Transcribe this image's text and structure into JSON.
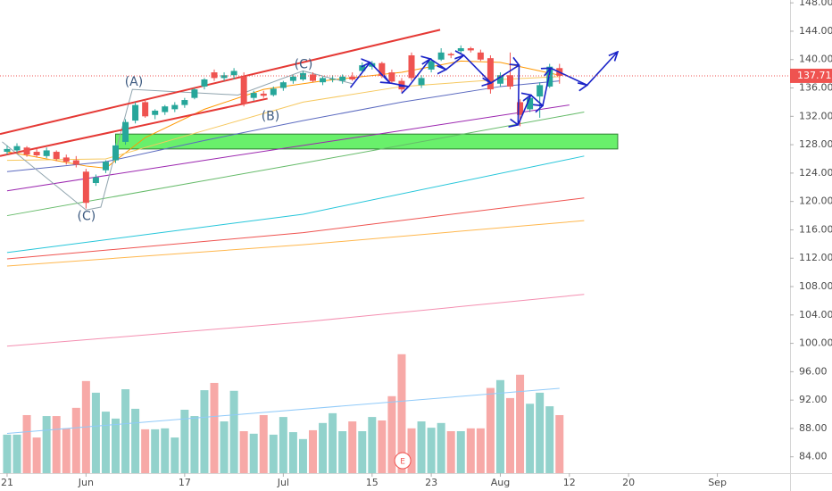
{
  "chart_data": {
    "type": "candlestick",
    "x": [
      0,
      1,
      2,
      3,
      4,
      5,
      6,
      7,
      8,
      9,
      10,
      11,
      12,
      13,
      14,
      15,
      16,
      17,
      18,
      19,
      20,
      21,
      22,
      23,
      24,
      25,
      26,
      27,
      28,
      29,
      30,
      31,
      32,
      33,
      34,
      35,
      36,
      37,
      38,
      39,
      40,
      41,
      42,
      43,
      44,
      45,
      46,
      47,
      48,
      49,
      50,
      51,
      52,
      53,
      54,
      55,
      56
    ],
    "open": [
      127.0,
      127.2,
      127.6,
      127.0,
      126.4,
      127.0,
      126.2,
      125.8,
      124.2,
      122.6,
      124.4,
      125.8,
      128.4,
      131.4,
      134.0,
      132.2,
      132.6,
      133.0,
      133.6,
      134.6,
      136.2,
      138.2,
      137.4,
      137.8,
      137.6,
      134.6,
      135.2,
      135.0,
      136.0,
      137.0,
      137.2,
      137.9,
      136.8,
      137.2,
      137.0,
      137.6,
      138.4,
      139.0,
      139.5,
      138.2,
      137.0,
      140.6,
      136.4,
      138.6,
      140.0,
      140.8,
      141.2,
      141.6,
      141.0,
      140.2,
      136.6,
      137.8,
      134.0,
      133.0,
      134.8,
      136.2,
      138.8
    ],
    "high": [
      127.9,
      128.2,
      127.8,
      127.4,
      127.6,
      127.2,
      126.6,
      126.4,
      124.6,
      123.8,
      125.8,
      128.2,
      131.6,
      134.0,
      134.4,
      133.0,
      133.6,
      134.0,
      134.6,
      136.0,
      137.4,
      138.6,
      138.2,
      138.8,
      138.2,
      135.6,
      135.6,
      136.2,
      137.0,
      137.8,
      138.4,
      138.2,
      137.6,
      137.8,
      137.9,
      138.2,
      139.6,
      139.8,
      139.7,
      138.6,
      137.4,
      141.0,
      137.8,
      140.2,
      141.6,
      141.0,
      142.0,
      141.8,
      141.4,
      140.6,
      138.2,
      141.0,
      134.4,
      135.0,
      136.8,
      139.4,
      139.4
    ],
    "low": [
      126.6,
      126.9,
      126.3,
      126.2,
      126.1,
      125.7,
      125.2,
      124.8,
      119.0,
      122.2,
      124.0,
      125.4,
      128.0,
      131.0,
      131.8,
      131.6,
      132.2,
      132.6,
      133.2,
      134.4,
      135.8,
      137.0,
      137.0,
      137.2,
      133.4,
      134.2,
      134.6,
      134.8,
      135.6,
      136.6,
      137.0,
      136.8,
      136.4,
      136.8,
      136.6,
      137.0,
      138.2,
      138.6,
      137.4,
      136.6,
      135.4,
      137.0,
      136.0,
      138.2,
      139.8,
      140.2,
      140.8,
      141.0,
      139.8,
      135.2,
      136.2,
      135.8,
      130.6,
      132.6,
      131.8,
      136.0,
      136.6
    ],
    "close": [
      127.4,
      127.8,
      126.6,
      126.5,
      127.2,
      126.0,
      125.6,
      125.2,
      119.8,
      123.4,
      125.6,
      127.9,
      131.2,
      133.6,
      132.0,
      132.8,
      133.4,
      133.6,
      134.3,
      135.8,
      137.2,
      137.4,
      137.8,
      138.4,
      133.8,
      135.3,
      134.9,
      135.9,
      136.8,
      137.6,
      138.1,
      137.0,
      137.4,
      137.3,
      137.6,
      137.2,
      139.2,
      139.5,
      137.7,
      136.9,
      135.8,
      137.4,
      137.4,
      139.8,
      141.0,
      140.6,
      141.6,
      141.3,
      140.0,
      135.8,
      137.8,
      136.2,
      132.2,
      134.6,
      136.4,
      139.0,
      137.71
    ],
    "volume": [
      12.2,
      12.2,
      18.4,
      11.3,
      18.1,
      18.1,
      14.2,
      20.7,
      29.2,
      25.5,
      19.5,
      17.3,
      26.6,
      20.4,
      13.9,
      13.9,
      14.2,
      11.3,
      20.1,
      18.1,
      26.3,
      28.6,
      16.4,
      26.1,
      13.3,
      12.5,
      18.4,
      12.2,
      17.8,
      13.0,
      10.8,
      13.6,
      15.9,
      19.0,
      13.3,
      16.4,
      13.3,
      17.8,
      16.7,
      24.4,
      37.7,
      14.2,
      16.4,
      14.4,
      15.9,
      13.3,
      13.3,
      14.2,
      14.2,
      27.0,
      29.5,
      23.8,
      31.2,
      22.0,
      25.5,
      21.2,
      18.4
    ],
    "up_color": "#26a69a",
    "down_color": "#ef5350",
    "xlim": [
      -0.72,
      79.37
    ],
    "ylim": [
      81.7,
      148.4
    ],
    "y2lim": [
      0,
      150
    ],
    "grid": false,
    "xticks": [
      {
        "value": 0,
        "label": "21"
      },
      {
        "value": 8,
        "label": "Jun"
      },
      {
        "value": 18,
        "label": "17"
      },
      {
        "value": 28,
        "label": "Jul"
      },
      {
        "value": 37,
        "label": "15"
      },
      {
        "value": 43,
        "label": "23"
      },
      {
        "value": 50,
        "label": "Aug"
      },
      {
        "value": 57,
        "label": "12"
      },
      {
        "value": 63,
        "label": "20"
      },
      {
        "value": 72,
        "label": "Sep"
      }
    ],
    "yticks": [
      {
        "value": 148,
        "label": "148.00"
      },
      {
        "value": 144,
        "label": "144.00"
      },
      {
        "value": 140,
        "label": "140.00"
      },
      {
        "value": 136,
        "label": "136.00"
      },
      {
        "value": 132,
        "label": "132.00"
      },
      {
        "value": 128,
        "label": "128.00"
      },
      {
        "value": 124,
        "label": "124.00"
      },
      {
        "value": 120,
        "label": "120.00"
      },
      {
        "value": 116,
        "label": "116.00"
      },
      {
        "value": 112,
        "label": "112.00"
      },
      {
        "value": 108,
        "label": "108.00"
      },
      {
        "value": 104,
        "label": "104.00"
      },
      {
        "value": 100,
        "label": "100.00"
      },
      {
        "value": 96,
        "label": "96.00"
      },
      {
        "value": 92,
        "label": "92.00"
      },
      {
        "value": 88,
        "label": "88.00"
      },
      {
        "value": 84,
        "label": "84.00"
      }
    ],
    "volume_ma": {
      "color": "#90caf9",
      "x": [
        0,
        56
      ],
      "values": [
        12.6,
        26.9
      ]
    },
    "moving_averages": [
      {
        "color": "#ff9800",
        "x": [
          0,
          8,
          10,
          14,
          20,
          26,
          32,
          40,
          46,
          50,
          56
        ],
        "values": [
          127.0,
          125.0,
          124.7,
          129.0,
          133.0,
          135.8,
          137.0,
          138.2,
          139.8,
          139.6,
          137.8
        ]
      },
      {
        "color": "#f6c85f",
        "x": [
          0,
          10,
          20,
          30,
          40,
          50,
          56
        ],
        "values": [
          125.8,
          126.0,
          130.0,
          134.0,
          136.2,
          137.2,
          137.6
        ]
      },
      {
        "color": "#5c6bc0",
        "x": [
          0,
          10,
          20,
          30,
          40,
          50,
          56
        ],
        "values": [
          124.2,
          125.6,
          128.6,
          131.4,
          134.0,
          136.2,
          137.0
        ]
      },
      {
        "color": "#9c27b0",
        "x": [
          0,
          20,
          40,
          57
        ],
        "values": [
          121.5,
          125.8,
          130.0,
          133.6
        ]
      },
      {
        "color": "#66bb6a",
        "x": [
          0,
          30,
          58.5
        ],
        "values": [
          118.0,
          125.4,
          132.6
        ]
      },
      {
        "color": "#26c6da",
        "x": [
          0,
          30,
          58.5
        ],
        "values": [
          112.8,
          118.2,
          126.4
        ]
      },
      {
        "color": "#ef5350",
        "x": [
          0,
          30,
          58.5
        ],
        "values": [
          111.9,
          115.6,
          120.5
        ]
      },
      {
        "color": "#ffb74d",
        "x": [
          0,
          30,
          58.5
        ],
        "values": [
          110.9,
          113.9,
          117.3
        ]
      },
      {
        "color": "#f48fb1",
        "x": [
          0,
          30,
          58.5
        ],
        "values": [
          99.6,
          103.0,
          106.9
        ]
      }
    ],
    "channel_lines": [
      {
        "color": "#e53935",
        "x": [
          -0.72,
          26.4
        ],
        "values": [
          126.4,
          134.5
        ]
      },
      {
        "color": "#e53935",
        "x": [
          -0.72,
          43.9
        ],
        "values": [
          129.5,
          144.2
        ]
      }
    ],
    "zone": {
      "color": "#69f06b",
      "x": [
        11.0,
        61.9
      ],
      "values": [
        127.4,
        129.5
      ]
    },
    "wave_path": {
      "color": "#90a4ae",
      "x": [
        -0.5,
        8,
        9.5,
        12.7,
        23.4,
        30,
        35
      ],
      "values": [
        128.4,
        118.8,
        119.2,
        135.8,
        135.0,
        138.4,
        136.6
      ]
    },
    "wave_labels": [
      {
        "text": "(A)",
        "x": 12.85,
        "y": 136.8
      },
      {
        "text": "(B)",
        "x": 26.7,
        "y": 132.0
      },
      {
        "text": "(C)",
        "x": 8.05,
        "y": 117.9
      },
      {
        "text": "(C)",
        "x": 30.05,
        "y": 139.3
      }
    ],
    "forecast_path": {
      "color": "#1a23c8",
      "x": [
        34.8,
        36.8,
        38.8,
        40.7,
        42.9,
        44.5,
        46.3,
        49.05,
        51.9,
        51.8,
        53.1,
        54.3,
        55.1,
        58.8,
        61.9
      ],
      "values": [
        136.05,
        139.6,
        136.7,
        136.2,
        140.1,
        138.6,
        140.6,
        136.7,
        139.2,
        130.8,
        135.0,
        133.5,
        138.8,
        136.4,
        141.1
      ]
    },
    "earnings": {
      "text": "E",
      "x": 40.1
    }
  }
}
